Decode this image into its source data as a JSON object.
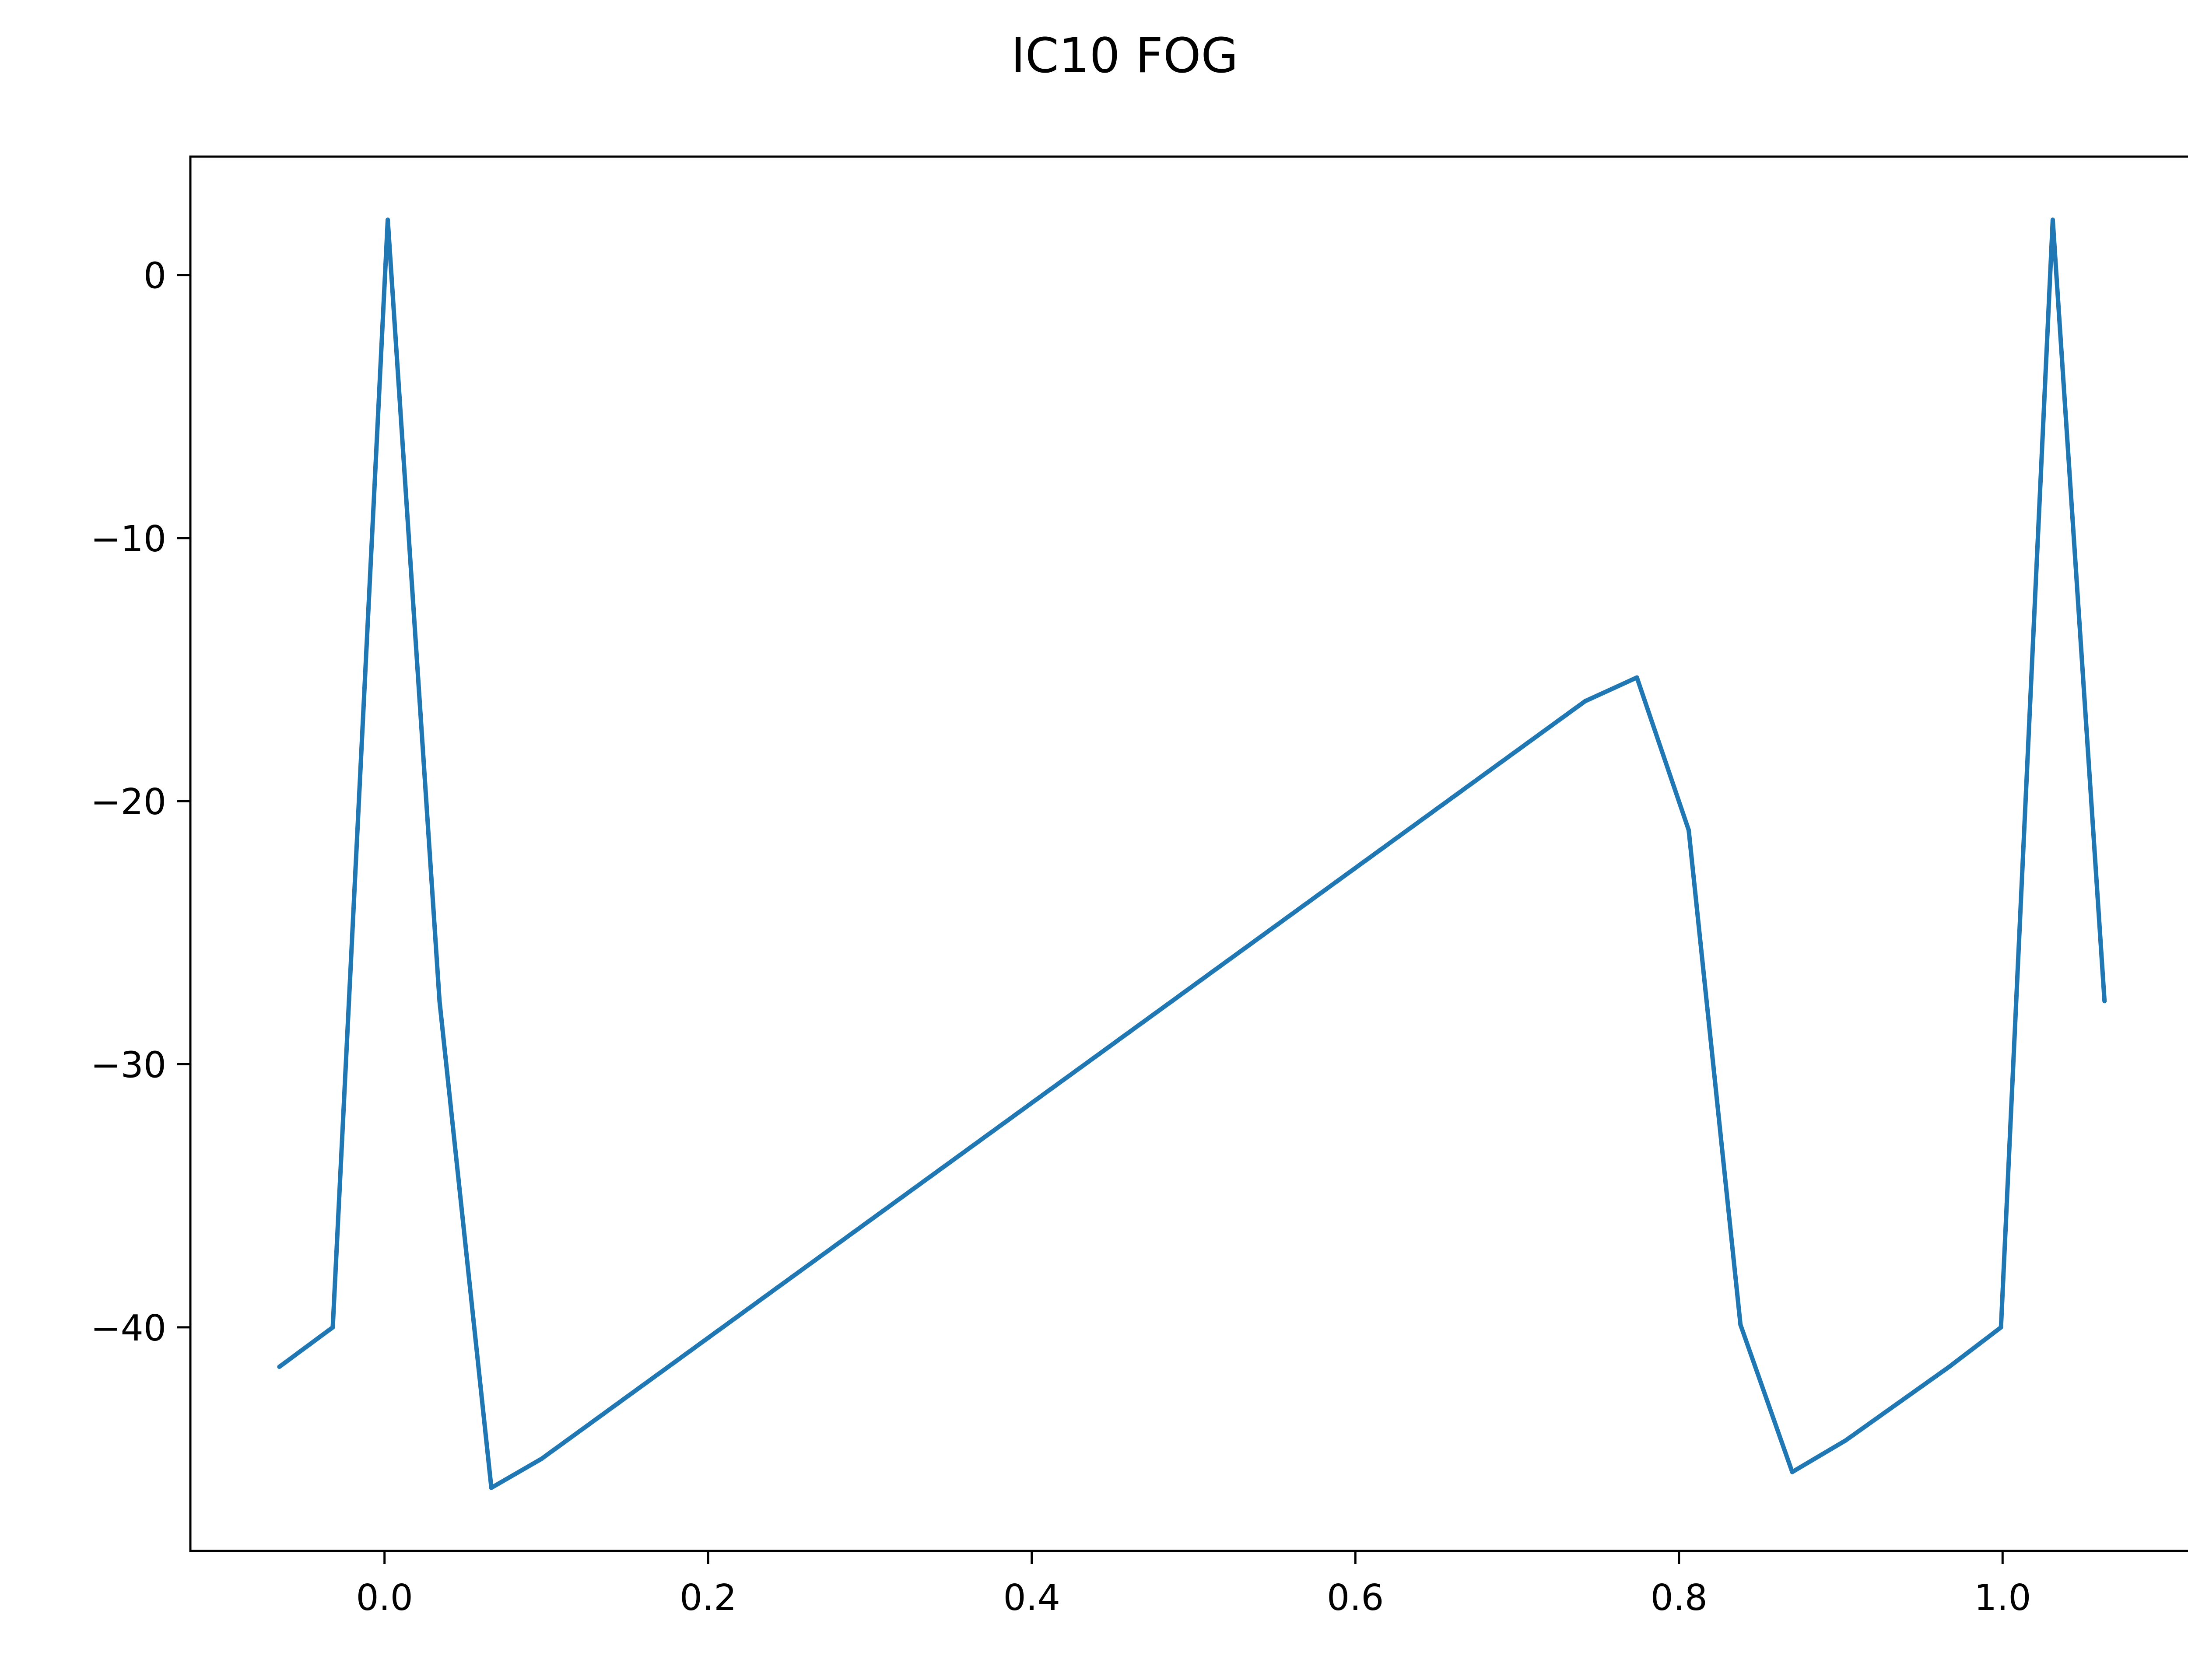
{
  "chart_data": {
    "type": "line",
    "title": "IC10 FOG",
    "xlabel": "",
    "ylabel": "",
    "xlim": [
      -0.12,
      1.12
    ],
    "ylim": [
      -48.5,
      4.5
    ],
    "xticks": [
      0.0,
      0.2,
      0.4,
      0.6,
      0.8,
      1.0
    ],
    "xtick_labels": [
      "0.0",
      "0.2",
      "0.4",
      "0.6",
      "0.8",
      "1.0"
    ],
    "yticks": [
      0,
      -10,
      -20,
      -30,
      -40
    ],
    "ytick_labels": [
      "0",
      "−10",
      "−20",
      "−30",
      "−40"
    ],
    "grid": false,
    "legend": false,
    "series": [
      {
        "color": "#1f77b4",
        "x": [
          -0.065,
          -0.032,
          0.002,
          0.034,
          0.066,
          0.097,
          0.742,
          0.774,
          0.806,
          0.838,
          0.87,
          0.903,
          0.967,
          0.999,
          1.031,
          1.063
        ],
        "y": [
          -41.5,
          -40.0,
          2.1,
          -27.6,
          -46.1,
          -45.0,
          -16.2,
          -15.3,
          -21.1,
          -39.9,
          -45.5,
          -44.3,
          -41.5,
          -40.0,
          2.1,
          -27.6
        ]
      }
    ]
  }
}
